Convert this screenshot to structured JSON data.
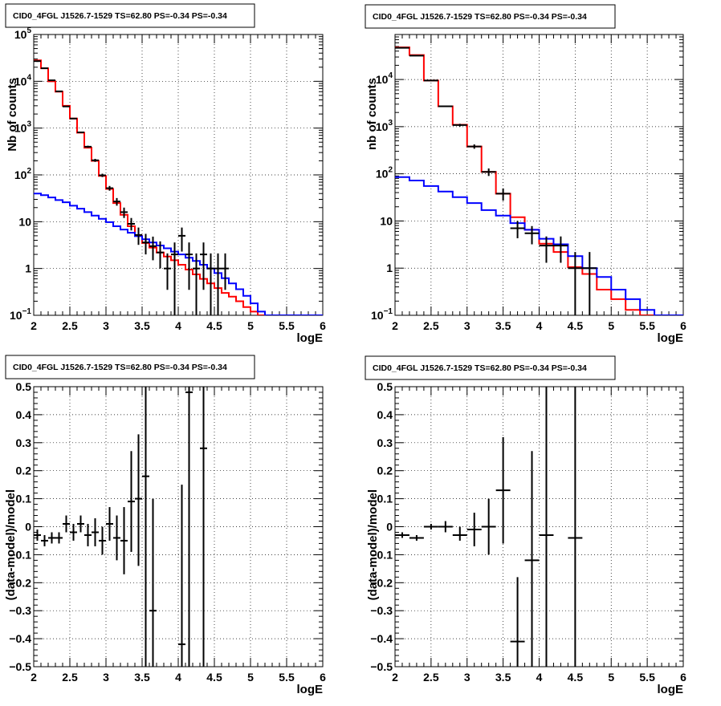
{
  "chart_data": [
    {
      "type": "histogram",
      "title": "CID0_4FGL J1526.7-1529 TS=62.80 PS=-0.34 PS=-0.34",
      "xlabel": "logE",
      "ylabel": "Nb of counts",
      "xlim": [
        2,
        6
      ],
      "ylim": [
        0.1,
        100000
      ],
      "yscale": "log",
      "grid": true,
      "xticks": [
        "2",
        "2.5",
        "3",
        "3.5",
        "4",
        "4.5",
        "5",
        "5.5",
        "6"
      ],
      "yticks": [
        {
          "v": 0.1,
          "base": "10",
          "exp": "−1"
        },
        {
          "v": 1,
          "label": "1"
        },
        {
          "v": 10,
          "label": "10"
        },
        {
          "v": 100,
          "base": "10",
          "exp": "2"
        },
        {
          "v": 1000,
          "base": "10",
          "exp": "3"
        },
        {
          "v": 10000,
          "base": "10",
          "exp": "4"
        },
        {
          "v": 100000,
          "base": "10",
          "exp": "5"
        }
      ],
      "series": [
        {
          "style": "step",
          "color": "#ff0000",
          "edges": [
            2.0,
            2.1,
            2.2,
            2.3,
            2.4,
            2.5,
            2.6,
            2.7,
            2.8,
            2.9,
            3.0,
            3.1,
            3.2,
            3.3,
            3.4,
            3.5,
            3.6,
            3.7,
            3.8,
            3.9,
            4.0,
            4.1,
            4.2,
            4.3,
            4.4,
            4.5,
            4.6,
            4.7,
            4.8,
            4.9,
            5.0,
            5.1,
            5.2,
            5.3,
            5.4,
            5.5,
            5.6,
            5.7,
            5.8,
            5.9,
            6.0
          ],
          "values": [
            28000,
            19000,
            10000,
            6000,
            3000,
            1600,
            800,
            380,
            200,
            95,
            50,
            25,
            14,
            8,
            5,
            3.5,
            2.8,
            2.2,
            1.8,
            1.5,
            1.2,
            0.95,
            0.75,
            0.6,
            0.48,
            0.38,
            0.3,
            0.25,
            0.2,
            0.15,
            0.12,
            0.1,
            0.1,
            0.1,
            0.1,
            0.1,
            0.1,
            0.1,
            0.1,
            0.1
          ]
        },
        {
          "style": "step",
          "color": "#0000ff",
          "edges": [
            2.0,
            2.1,
            2.2,
            2.3,
            2.4,
            2.5,
            2.6,
            2.7,
            2.8,
            2.9,
            3.0,
            3.1,
            3.2,
            3.3,
            3.4,
            3.5,
            3.6,
            3.7,
            3.8,
            3.9,
            4.0,
            4.1,
            4.2,
            4.3,
            4.4,
            4.5,
            4.6,
            4.7,
            4.8,
            4.9,
            5.0,
            5.1,
            5.2,
            5.3,
            5.4,
            5.5,
            5.6,
            5.7,
            5.8,
            5.9,
            6.0
          ],
          "values": [
            40,
            37,
            33,
            29,
            26,
            22,
            19,
            16,
            13.5,
            11.5,
            9.8,
            8,
            6.8,
            5.8,
            4.9,
            4.2,
            3.6,
            3.1,
            2.7,
            2.3,
            2.0,
            1.7,
            1.45,
            1.2,
            1.0,
            0.8,
            0.62,
            0.48,
            0.36,
            0.26,
            0.18,
            0.12,
            0.1,
            0.1,
            0.1,
            0.1,
            0.1,
            0.1,
            0.1,
            0.1
          ]
        }
      ],
      "points": {
        "color": "#000000",
        "x": [
          2.05,
          2.15,
          2.25,
          2.35,
          2.45,
          2.55,
          2.65,
          2.75,
          2.85,
          2.95,
          3.05,
          3.15,
          3.25,
          3.35,
          3.45,
          3.55,
          3.65,
          3.75,
          3.85,
          3.95,
          4.05,
          4.15,
          4.25,
          4.35,
          4.45,
          4.55,
          4.65
        ],
        "y": [
          27000,
          19000,
          10500,
          6100,
          2900,
          1600,
          810,
          400,
          205,
          98,
          52,
          27,
          16,
          9,
          5.2,
          3.6,
          3,
          2.2,
          1,
          2,
          5,
          2,
          1,
          2,
          1,
          1,
          1
        ],
        "xerr": 0.05,
        "ylow": [
          26000,
          18500,
          10300,
          6000,
          2850,
          1560,
          790,
          380,
          190,
          90,
          46,
          22,
          12,
          6.5,
          3.2,
          2,
          1.5,
          1,
          0.35,
          0.1,
          2.3,
          0.35,
          0.1,
          0.35,
          0.1,
          0.1,
          0.35
        ],
        "yhigh": [
          28000,
          19500,
          10700,
          6200,
          2950,
          1640,
          830,
          420,
          220,
          106,
          58,
          32,
          20,
          12,
          7.5,
          5.5,
          4.8,
          3.8,
          2.1,
          3.6,
          7.5,
          3.6,
          2.1,
          3.6,
          2.1,
          2.1,
          2.1
        ]
      }
    },
    {
      "type": "histogram",
      "title": "CID0_4FGL J1526.7-1529 TS=62.80 PS=-0.34 PS=-0.34",
      "xlabel": "logE",
      "ylabel": "nb of counts",
      "xlim": [
        2,
        6
      ],
      "ylim": [
        0.1,
        90000
      ],
      "yscale": "log",
      "grid": true,
      "xticks": [
        "2",
        "2.5",
        "3",
        "3.5",
        "4",
        "4.5",
        "5",
        "5.5",
        "6"
      ],
      "yticks": [
        {
          "v": 0.1,
          "base": "10",
          "exp": "−1"
        },
        {
          "v": 1,
          "label": "1"
        },
        {
          "v": 10,
          "label": "10"
        },
        {
          "v": 100,
          "base": "10",
          "exp": "2"
        },
        {
          "v": 1000,
          "base": "10",
          "exp": "3"
        },
        {
          "v": 10000,
          "base": "10",
          "exp": "4"
        }
      ],
      "series": [
        {
          "style": "step",
          "color": "#ff0000",
          "edges": [
            2.0,
            2.2,
            2.4,
            2.6,
            2.8,
            3.0,
            3.2,
            3.4,
            3.6,
            3.8,
            4.0,
            4.2,
            4.4,
            4.6,
            4.8,
            5.0,
            5.2,
            5.4,
            5.6,
            5.8,
            6.0
          ],
          "values": [
            48000,
            33000,
            9500,
            2700,
            1100,
            380,
            110,
            38,
            12,
            6.5,
            3.3,
            2.2,
            1.05,
            0.75,
            0.35,
            0.22,
            0.13,
            0.1,
            0.1,
            0.1
          ]
        },
        {
          "style": "step",
          "color": "#0000ff",
          "edges": [
            2.0,
            2.2,
            2.4,
            2.6,
            2.8,
            3.0,
            3.2,
            3.4,
            3.6,
            3.8,
            4.0,
            4.2,
            4.4,
            4.6,
            4.8,
            5.0,
            5.2,
            5.4,
            5.6,
            5.8,
            6.0
          ],
          "values": [
            85,
            72,
            55,
            42,
            32,
            24,
            17,
            13,
            9,
            6.5,
            4.2,
            3.2,
            1.8,
            1.0,
            0.65,
            0.35,
            0.22,
            0.13,
            0.1,
            0.1
          ]
        }
      ],
      "points": {
        "color": "#000000",
        "x": [
          2.1,
          2.3,
          2.5,
          2.7,
          2.9,
          3.1,
          3.3,
          3.5,
          3.7,
          3.9,
          4.1,
          4.3,
          4.5,
          4.7
        ],
        "y": [
          47000,
          32000,
          9500,
          2700,
          1080,
          380,
          110,
          38,
          7,
          5.5,
          3,
          3,
          1,
          1
        ],
        "xerr": 0.1,
        "ylow": [
          46500,
          31500,
          9300,
          2600,
          1010,
          340,
          90,
          27,
          4.3,
          3.2,
          1.3,
          1.3,
          0.1,
          0.1
        ],
        "yhigh": [
          47500,
          32500,
          9700,
          2800,
          1150,
          420,
          130,
          49,
          10,
          7.8,
          4.7,
          4.7,
          2.2,
          2.2
        ]
      }
    },
    {
      "type": "scatter",
      "title": "CID0_4FGL J1526.7-1529 TS=62.80 PS=-0.34 PS=-0.34",
      "xlabel": "logE",
      "ylabel": "(data-model)/model",
      "xlim": [
        2,
        6
      ],
      "ylim": [
        -0.5,
        0.5
      ],
      "yscale": "linear",
      "grid": true,
      "xticks": [
        "2",
        "2.5",
        "3",
        "3.5",
        "4",
        "4.5",
        "5",
        "5.5",
        "6"
      ],
      "yticks": [
        {
          "v": -0.5,
          "label": "−0.5"
        },
        {
          "v": -0.4,
          "label": "−0.4"
        },
        {
          "v": -0.3,
          "label": "−0.3"
        },
        {
          "v": -0.2,
          "label": "−0.2"
        },
        {
          "v": -0.1,
          "label": "−0.1"
        },
        {
          "v": 0,
          "label": "0"
        },
        {
          "v": 0.1,
          "label": "0.1"
        },
        {
          "v": 0.2,
          "label": "0.2"
        },
        {
          "v": 0.3,
          "label": "0.3"
        },
        {
          "v": 0.4,
          "label": "0.4"
        },
        {
          "v": 0.5,
          "label": "0.5"
        }
      ],
      "series": [],
      "points": {
        "color": "#000000",
        "x": [
          2.05,
          2.15,
          2.25,
          2.35,
          2.45,
          2.55,
          2.65,
          2.75,
          2.85,
          2.95,
          3.05,
          3.15,
          3.25,
          3.35,
          3.45,
          3.55,
          3.65,
          4.05,
          4.15,
          4.35
        ],
        "y": [
          -0.03,
          -0.05,
          -0.04,
          -0.04,
          0.01,
          -0.02,
          0.01,
          -0.03,
          -0.02,
          -0.05,
          0.01,
          -0.04,
          -0.05,
          0.09,
          0.1,
          0.18,
          -0.3,
          -0.42,
          0.48,
          0.28
        ],
        "xerr": 0.05,
        "ylow": [
          -0.05,
          -0.07,
          -0.06,
          -0.06,
          -0.02,
          -0.05,
          -0.02,
          -0.07,
          -0.07,
          -0.1,
          -0.05,
          -0.12,
          -0.17,
          -0.09,
          -0.14,
          -0.5,
          -0.5,
          -0.5,
          -0.5,
          -0.5
        ],
        "yhigh": [
          -0.01,
          -0.03,
          -0.02,
          -0.02,
          0.04,
          0.01,
          0.04,
          0.01,
          0.03,
          0.0,
          0.07,
          0.04,
          0.07,
          0.27,
          0.33,
          0.5,
          0.1,
          0.15,
          0.5,
          0.5
        ]
      }
    },
    {
      "type": "scatter",
      "title": "CID0_4FGL J1526.7-1529 TS=62.80 PS=-0.34 PS=-0.34",
      "xlabel": "logE",
      "ylabel": "(data-model)/model",
      "xlim": [
        2,
        6
      ],
      "ylim": [
        -0.5,
        0.5
      ],
      "yscale": "linear",
      "grid": true,
      "xticks": [
        "2",
        "2.5",
        "3",
        "3.5",
        "4",
        "4.5",
        "5",
        "5.5",
        "6"
      ],
      "yticks": [
        {
          "v": -0.5,
          "label": "−0.5"
        },
        {
          "v": -0.4,
          "label": "−0.4"
        },
        {
          "v": -0.3,
          "label": "−0.3"
        },
        {
          "v": -0.2,
          "label": "−0.2"
        },
        {
          "v": -0.1,
          "label": "−0.1"
        },
        {
          "v": 0,
          "label": "0"
        },
        {
          "v": 0.1,
          "label": "0.1"
        },
        {
          "v": 0.2,
          "label": "0.2"
        },
        {
          "v": 0.3,
          "label": "0.3"
        },
        {
          "v": 0.4,
          "label": "0.4"
        },
        {
          "v": 0.5,
          "label": "0.5"
        }
      ],
      "series": [],
      "points": {
        "color": "#000000",
        "x": [
          2.1,
          2.3,
          2.5,
          2.7,
          2.9,
          3.1,
          3.3,
          3.5,
          3.7,
          3.9,
          4.1,
          4.5
        ],
        "y": [
          -0.03,
          -0.04,
          0.0,
          0.0,
          -0.03,
          -0.01,
          0.0,
          0.13,
          -0.41,
          -0.12,
          -0.03,
          -0.04
        ],
        "xerr": 0.1,
        "ylow": [
          -0.04,
          -0.05,
          -0.01,
          -0.02,
          -0.05,
          -0.07,
          -0.1,
          -0.06,
          -0.5,
          -0.5,
          -0.5,
          -0.5
        ],
        "yhigh": [
          -0.02,
          -0.03,
          0.01,
          0.02,
          0.0,
          0.05,
          0.1,
          0.32,
          -0.18,
          0.27,
          0.5,
          0.5
        ]
      }
    }
  ]
}
